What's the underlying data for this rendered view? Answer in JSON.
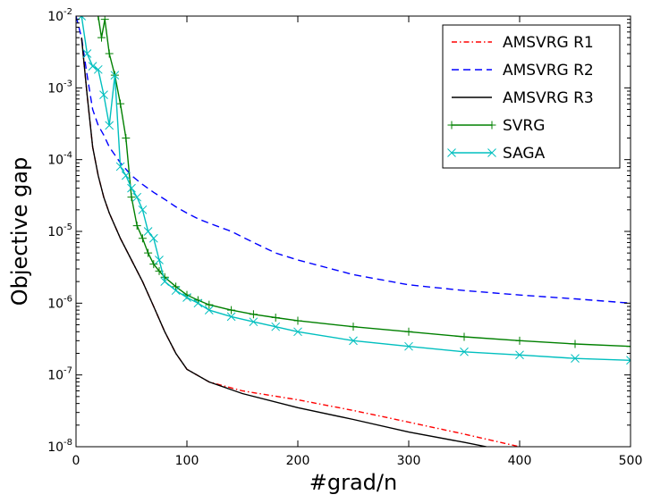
{
  "chart_data": {
    "type": "line",
    "title": "",
    "xlabel": "#grad/n",
    "ylabel": "Objective gap",
    "xlim": [
      0,
      500
    ],
    "ylim": [
      1e-08,
      0.01
    ],
    "yscale": "log",
    "xticks": [
      0,
      100,
      200,
      300,
      400,
      500
    ],
    "xtick_labels": [
      "0",
      "100",
      "200",
      "300",
      "400",
      "500"
    ],
    "yticks": [
      1e-08,
      1e-07,
      1e-06,
      1e-05,
      0.0001,
      0.001,
      0.01
    ],
    "ytick_labels": [
      {
        "base": "10",
        "exp": "-8"
      },
      {
        "base": "10",
        "exp": "-7"
      },
      {
        "base": "10",
        "exp": "-6"
      },
      {
        "base": "10",
        "exp": "-5"
      },
      {
        "base": "10",
        "exp": "-4"
      },
      {
        "base": "10",
        "exp": "-3"
      },
      {
        "base": "10",
        "exp": "-2"
      }
    ],
    "legend_position": "top-right",
    "series": [
      {
        "name": "AMSVRG R1",
        "color": "#ff0000",
        "style": "dashdot",
        "marker": "none",
        "x": [
          5,
          10,
          15,
          20,
          25,
          30,
          40,
          50,
          60,
          70,
          80,
          90,
          100,
          120,
          150,
          200,
          250,
          300,
          350,
          400
        ],
        "y": [
          0.005,
          0.0008,
          0.00015,
          6e-05,
          3e-05,
          1.8e-05,
          8e-06,
          4e-06,
          2e-06,
          9e-07,
          4e-07,
          2e-07,
          1.2e-07,
          8e-08,
          6e-08,
          4.5e-08,
          3.2e-08,
          2.2e-08,
          1.5e-08,
          1e-08
        ]
      },
      {
        "name": "AMSVRG R2",
        "color": "#0000ff",
        "style": "dashed",
        "marker": "none",
        "x": [
          0,
          5,
          10,
          15,
          20,
          25,
          30,
          40,
          50,
          60,
          70,
          80,
          90,
          100,
          110,
          120,
          140,
          160,
          180,
          200,
          250,
          300,
          350,
          400,
          450,
          500
        ],
        "y": [
          0.01,
          0.005,
          0.0015,
          0.0005,
          0.0003,
          0.00022,
          0.00015,
          9e-05,
          6e-05,
          4.5e-05,
          3.5e-05,
          2.8e-05,
          2.2e-05,
          1.8e-05,
          1.5e-05,
          1.3e-05,
          1e-05,
          7e-06,
          5e-06,
          4e-06,
          2.5e-06,
          1.8e-06,
          1.5e-06,
          1.3e-06,
          1.15e-06,
          1e-06
        ]
      },
      {
        "name": "AMSVRG R3",
        "color": "#000000",
        "style": "solid",
        "marker": "none",
        "x": [
          5,
          10,
          15,
          20,
          25,
          30,
          40,
          50,
          60,
          70,
          80,
          90,
          100,
          120,
          150,
          200,
          250,
          300,
          350,
          370
        ],
        "y": [
          0.005,
          0.0008,
          0.00015,
          6e-05,
          3e-05,
          1.8e-05,
          8e-06,
          4e-06,
          2e-06,
          9e-07,
          4e-07,
          2e-07,
          1.2e-07,
          8e-08,
          5.5e-08,
          3.5e-08,
          2.4e-08,
          1.6e-08,
          1.15e-08,
          1e-08
        ]
      },
      {
        "name": "SVRG",
        "color": "#008000",
        "style": "solid",
        "marker": "plus",
        "x": [
          20,
          23,
          26,
          30,
          35,
          40,
          45,
          50,
          55,
          60,
          65,
          70,
          75,
          80,
          90,
          100,
          110,
          120,
          140,
          160,
          180,
          200,
          250,
          300,
          350,
          400,
          450,
          500
        ],
        "y": [
          0.01,
          0.005,
          0.009,
          0.003,
          0.0015,
          0.0006,
          0.0002,
          3e-05,
          1.2e-05,
          8e-06,
          5e-06,
          3.5e-06,
          2.8e-06,
          2.3e-06,
          1.7e-06,
          1.3e-06,
          1.1e-06,
          9.5e-07,
          8e-07,
          7e-07,
          6.3e-07,
          5.7e-07,
          4.7e-07,
          4e-07,
          3.4e-07,
          3e-07,
          2.7e-07,
          2.5e-07
        ]
      },
      {
        "name": "SAGA",
        "color": "#00bfbf",
        "style": "solid",
        "marker": "x",
        "x": [
          5,
          10,
          15,
          20,
          25,
          30,
          35,
          40,
          45,
          50,
          55,
          60,
          65,
          70,
          75,
          80,
          90,
          100,
          110,
          120,
          140,
          160,
          180,
          200,
          250,
          300,
          350,
          400,
          450,
          500
        ],
        "y": [
          0.01,
          0.003,
          0.002,
          0.0018,
          0.0008,
          0.0003,
          0.0015,
          8e-05,
          6e-05,
          4e-05,
          3e-05,
          2e-05,
          1e-05,
          8e-06,
          4e-06,
          2e-06,
          1.5e-06,
          1.2e-06,
          1e-06,
          8e-07,
          6.5e-07,
          5.5e-07,
          4.7e-07,
          4e-07,
          3e-07,
          2.5e-07,
          2.1e-07,
          1.9e-07,
          1.7e-07,
          1.6e-07
        ]
      }
    ]
  }
}
